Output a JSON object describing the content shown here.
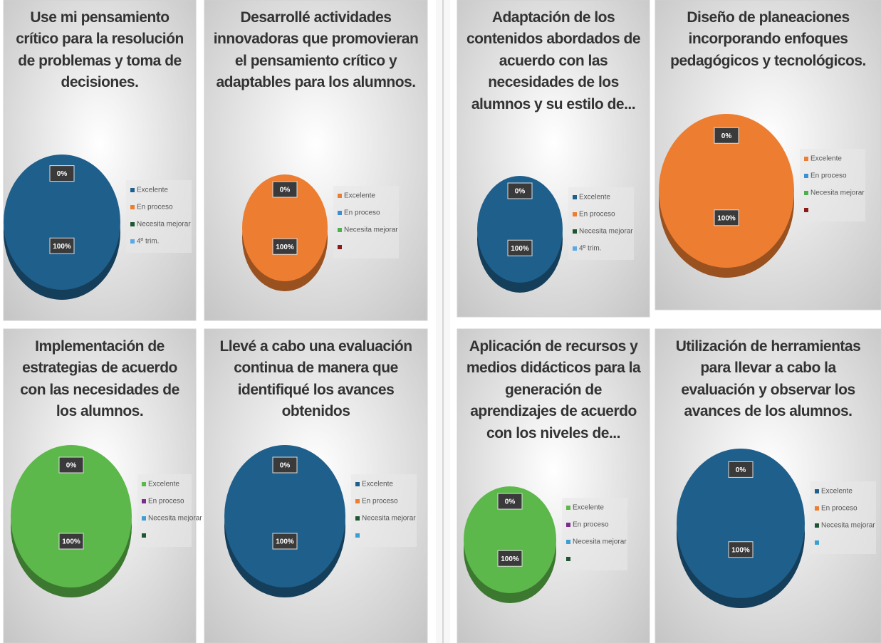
{
  "chart_data": [
    {
      "type": "pie",
      "title": "Use mi pensamiento crítico para la resolución de problemas y toma de decisiones.",
      "categories": [
        "Excelente",
        "En proceso",
        "Necesita mejorar",
        "4º trim."
      ],
      "colors": [
        "#1f5f8b",
        "#ed7d31",
        "#1e5631",
        "#5aa9e6"
      ],
      "values": [
        100,
        0,
        null,
        null
      ],
      "value_labels": [
        "100%",
        "0%",
        null,
        null
      ]
    },
    {
      "type": "pie",
      "title": "Desarrollé actividades innovadoras que promovieran el pensamiento crítico y adaptables para los alumnos.",
      "categories": [
        "Excelente",
        "En proceso",
        "Necesita mejorar",
        null
      ],
      "colors": [
        "#ed7d31",
        "#3b8fd4",
        "#4caf50",
        "#8b1a1a"
      ],
      "values": [
        100,
        0,
        null,
        null
      ],
      "value_labels": [
        "100%",
        "0%",
        null,
        null
      ]
    },
    {
      "type": "pie",
      "title": "Adaptación de los contenidos abordados de acuerdo con las necesidades de los alumnos y su estilo de...",
      "categories": [
        "Excelente",
        "En proceso",
        "Necesita mejorar",
        "4º trim."
      ],
      "colors": [
        "#1f5f8b",
        "#ed7d31",
        "#1e5631",
        "#5aa9e6"
      ],
      "values": [
        100,
        0,
        null,
        null
      ],
      "value_labels": [
        "100%",
        "0%",
        null,
        null
      ]
    },
    {
      "type": "pie",
      "title": "Diseño de planeaciones incorporando enfoques pedagógicos y tecnológicos.",
      "categories": [
        "Excelente",
        "En proceso",
        "Necesita mejorar",
        null
      ],
      "colors": [
        "#ed7d31",
        "#3b8fd4",
        "#4caf50",
        "#8b1a1a"
      ],
      "values": [
        100,
        0,
        null,
        null
      ],
      "value_labels": [
        "100%",
        "0%",
        null,
        null
      ]
    },
    {
      "type": "pie",
      "title": "Implementación de estrategias de acuerdo con las necesidades de los alumnos.",
      "categories": [
        "Excelente",
        "En proceso",
        "Necesita mejorar",
        null
      ],
      "colors": [
        "#5cb84a",
        "#7b2d8e",
        "#3b9fd4",
        "#1e5631"
      ],
      "values": [
        100,
        0,
        null,
        null
      ],
      "value_labels": [
        "100%",
        "0%",
        null,
        null
      ]
    },
    {
      "type": "pie",
      "title": "Llevé a cabo una evaluación continua de manera que identifiqué los avances obtenidos",
      "categories": [
        "Excelente",
        "En proceso",
        "Necesita mejorar",
        null
      ],
      "colors": [
        "#1f5f8b",
        "#ed7d31",
        "#1e5631",
        "#3b9fd4"
      ],
      "values": [
        100,
        0,
        null,
        null
      ],
      "value_labels": [
        "100%",
        "0%",
        null,
        null
      ]
    },
    {
      "type": "pie",
      "title": "Aplicación de recursos y medios didácticos para la generación de aprendizajes de acuerdo con los niveles de...",
      "categories": [
        "Excelente",
        "En proceso",
        "Necesita mejorar",
        null
      ],
      "colors": [
        "#5cb84a",
        "#7b2d8e",
        "#3b9fd4",
        "#1e5631"
      ],
      "values": [
        100,
        0,
        null,
        null
      ],
      "value_labels": [
        "100%",
        "0%",
        null,
        null
      ]
    },
    {
      "type": "pie",
      "title": "Utilización de herramientas para llevar a cabo la evaluación y observar los avances de los alumnos.",
      "categories": [
        "Excelente",
        "En proceso",
        "Necesita mejorar",
        null
      ],
      "colors": [
        "#1f5f8b",
        "#ed7d31",
        "#1e5631",
        "#3b9fd4"
      ],
      "values": [
        100,
        0,
        null,
        null
      ],
      "value_labels": [
        "100%",
        "0%",
        null,
        null
      ]
    }
  ]
}
